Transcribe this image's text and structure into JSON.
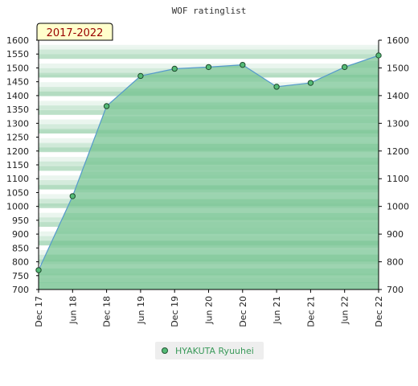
{
  "chart_data": {
    "type": "area",
    "title": "WOF ratinglist",
    "period_badge": "2017-2022",
    "categories": [
      "Dec 17",
      "Jun 18",
      "Dec 18",
      "Jun 19",
      "Dec 19",
      "Jun 20",
      "Dec 20",
      "Jun 21",
      "Dec 21",
      "Jun 22",
      "Dec 22"
    ],
    "series": [
      {
        "name": "HYAKUTA Ryuuhei",
        "values": [
          770,
          1037,
          1362,
          1471,
          1497,
          1503,
          1511,
          1432,
          1446,
          1503,
          1545
        ]
      }
    ],
    "ylim": [
      700,
      1600
    ],
    "yticks_left": [
      700,
      750,
      800,
      850,
      900,
      950,
      1000,
      1050,
      1100,
      1150,
      1200,
      1250,
      1300,
      1350,
      1400,
      1450,
      1500,
      1550,
      1600
    ],
    "yticks_right": [
      700,
      800,
      900,
      1000,
      1100,
      1200,
      1300,
      1400,
      1500,
      1600
    ],
    "colors": {
      "area": "#7ec798",
      "line": "#5599cc",
      "marker": "#55bb77",
      "badge_bg": "#ffffcc",
      "badge_text": "#990000",
      "legend_text": "#3a9a5a"
    },
    "legend": {
      "position": "bottom"
    }
  }
}
